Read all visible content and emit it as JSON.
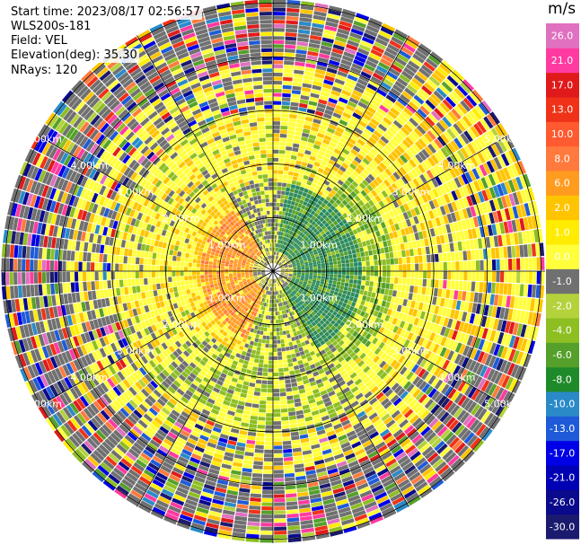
{
  "header": {
    "start_time": "Start time: 2023/08/17 02:56:57",
    "instrument": "WLS200s-181",
    "field": "Field: VEL",
    "elevation": "Elevation(deg): 35.30",
    "nrays": "NRays: 120"
  },
  "colorbar": {
    "unit": "m/s",
    "ticks": [
      "26.0",
      "21.0",
      "17.0",
      "13.0",
      "10.0",
      "8.0",
      "6.0",
      "2.0",
      "1.0",
      "0.0",
      "-1.0",
      "-2.0",
      "-4.0",
      "-6.0",
      "-8.0",
      "-10.0",
      "-13.0",
      "-17.0",
      "-21.0",
      "-26.0",
      "-30.0"
    ],
    "colors": [
      "#1a1a6e",
      "#0a0a8c",
      "#0000b4",
      "#0000e6",
      "#1f5bd8",
      "#2a8ac8",
      "#1f8a2a",
      "#55a02a",
      "#8dbe22",
      "#b4d23c",
      "#707070",
      "#ffff3c",
      "#ffec00",
      "#ffc400",
      "#ff9c20",
      "#ff7a3c",
      "#ff5a30",
      "#f03218",
      "#e01a1a",
      "#ff3aa0",
      "#e070c0"
    ]
  },
  "range_labels": [
    "1.00km",
    "2.00km",
    "3.00km",
    "4.00km",
    "5.00km"
  ],
  "chart_data": {
    "type": "heatmap",
    "title": "Start time: 2023/08/17 02:56:57",
    "field": "VEL",
    "unit": "m/s",
    "elevation_deg": 35.3,
    "n_rays": 120,
    "range_rings_km": [
      1,
      2,
      3,
      4,
      5
    ],
    "value_range": [
      -30,
      26
    ],
    "pattern": {
      "near_field_positive_sector": "west / south-west (orange, ~+6 to +13 m/s)",
      "near_field_negative_sector": "north-east (green, ~-4 to -6 m/s)",
      "mid_field": "yellow (+1 to +2 m/s)",
      "far_field": "noisy, mixed values"
    }
  }
}
